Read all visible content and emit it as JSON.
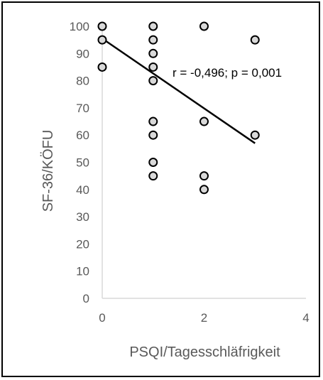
{
  "chart_data": {
    "type": "scatter",
    "xlabel": "PSQI/Tagesschläfrigkeit",
    "ylabel": "SF-36/KÖFU",
    "xlim": [
      0,
      4
    ],
    "ylim": [
      0,
      100
    ],
    "x_ticks": [
      0,
      2,
      4
    ],
    "y_ticks": [
      0,
      10,
      20,
      30,
      40,
      50,
      60,
      70,
      80,
      90,
      100
    ],
    "grid": false,
    "points": [
      {
        "x": 0,
        "y": 100
      },
      {
        "x": 0,
        "y": 95
      },
      {
        "x": 0,
        "y": 85
      },
      {
        "x": 1,
        "y": 100
      },
      {
        "x": 1,
        "y": 95
      },
      {
        "x": 1,
        "y": 90
      },
      {
        "x": 1,
        "y": 85
      },
      {
        "x": 1,
        "y": 80
      },
      {
        "x": 1,
        "y": 65
      },
      {
        "x": 1,
        "y": 60
      },
      {
        "x": 1,
        "y": 50
      },
      {
        "x": 1,
        "y": 45
      },
      {
        "x": 2,
        "y": 100
      },
      {
        "x": 2,
        "y": 65
      },
      {
        "x": 2,
        "y": 45
      },
      {
        "x": 2,
        "y": 40
      },
      {
        "x": 3,
        "y": 95
      },
      {
        "x": 3,
        "y": 60
      }
    ],
    "trendline": {
      "x": [
        0,
        3
      ],
      "y": [
        95.5,
        57
      ]
    },
    "annotation": "r = -0,496; p = 0,001",
    "marker_fill": "#d9d9d9",
    "marker_stroke": "#000000",
    "axis_color": "#d9d9d9",
    "text_color": "#595959"
  }
}
